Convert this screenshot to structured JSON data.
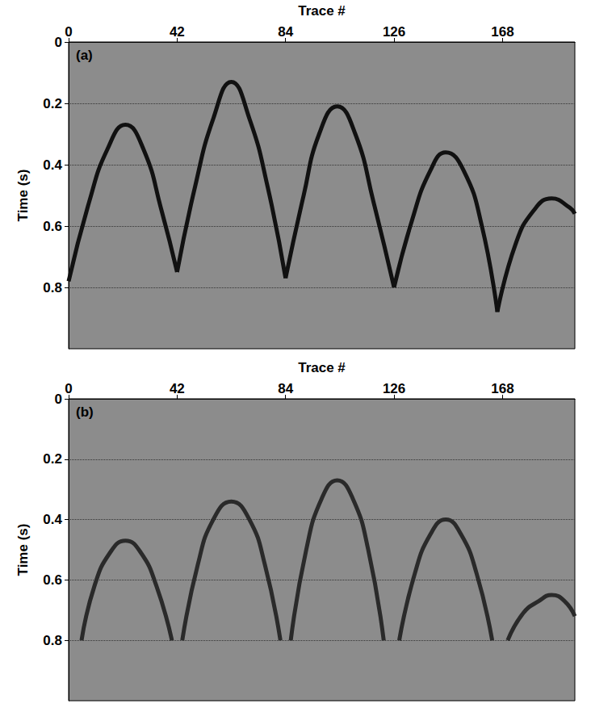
{
  "chart_data": [
    {
      "type": "line",
      "title": "(a)",
      "x_label": "Trace #",
      "y_label": "Time (s)",
      "xlim": [
        0,
        196
      ],
      "xticks": [
        0,
        42,
        84,
        126,
        168
      ],
      "ylim": [
        0,
        1
      ],
      "yticks": [
        0,
        0.2,
        0.4,
        0.6,
        0.8
      ],
      "grid": "y",
      "series": [
        {
          "x": [
            0,
            8,
            15,
            22,
            29,
            36,
            42
          ],
          "values": [
            0.78,
            0.52,
            0.35,
            0.27,
            0.35,
            0.55,
            0.75
          ],
          "color": "#111111"
        },
        {
          "x": [
            42,
            49,
            56,
            63,
            70,
            77,
            84
          ],
          "values": [
            0.75,
            0.47,
            0.25,
            0.13,
            0.25,
            0.47,
            0.77
          ],
          "color": "#111111"
        },
        {
          "x": [
            84,
            91,
            97,
            104,
            111,
            118,
            126
          ],
          "values": [
            0.77,
            0.5,
            0.3,
            0.21,
            0.3,
            0.52,
            0.8
          ],
          "color": "#111111"
        },
        {
          "x": [
            126,
            133,
            140,
            146,
            153,
            160,
            166
          ],
          "values": [
            0.8,
            0.58,
            0.42,
            0.36,
            0.42,
            0.6,
            0.88
          ],
          "color": "#111111"
        },
        {
          "x": [
            166,
            173,
            180,
            187,
            194,
            196
          ],
          "values": [
            0.88,
            0.66,
            0.55,
            0.51,
            0.54,
            0.56
          ],
          "color": "#111111"
        }
      ]
    },
    {
      "type": "line",
      "title": "(b)",
      "x_label": "Trace #",
      "y_label": "Time (s)",
      "xlim": [
        0,
        196
      ],
      "xticks": [
        0,
        42,
        84,
        126,
        168
      ],
      "ylim": [
        0,
        1
      ],
      "yticks": [
        0,
        0.2,
        0.4,
        0.6,
        0.8
      ],
      "grid": "y",
      "series": [
        {
          "x": [
            5,
            10,
            16,
            22,
            28,
            34,
            40
          ],
          "values": [
            0.8,
            0.62,
            0.51,
            0.47,
            0.51,
            0.62,
            0.8
          ],
          "color": "#2a2a2a"
        },
        {
          "x": [
            44,
            50,
            56,
            63,
            70,
            76,
            82
          ],
          "values": [
            0.8,
            0.55,
            0.4,
            0.34,
            0.4,
            0.55,
            0.8
          ],
          "color": "#2a2a2a"
        },
        {
          "x": [
            86,
            92,
            98,
            104,
            110,
            116,
            122
          ],
          "values": [
            0.8,
            0.5,
            0.33,
            0.27,
            0.33,
            0.5,
            0.8
          ],
          "color": "#2a2a2a"
        },
        {
          "x": [
            128,
            134,
            140,
            146,
            152,
            158,
            164
          ],
          "values": [
            0.8,
            0.58,
            0.45,
            0.4,
            0.45,
            0.58,
            0.8
          ],
          "color": "#2a2a2a"
        },
        {
          "x": [
            170,
            176,
            182,
            187,
            192,
            196
          ],
          "values": [
            0.8,
            0.71,
            0.67,
            0.65,
            0.67,
            0.72
          ],
          "color": "#2a2a2a"
        }
      ]
    }
  ]
}
